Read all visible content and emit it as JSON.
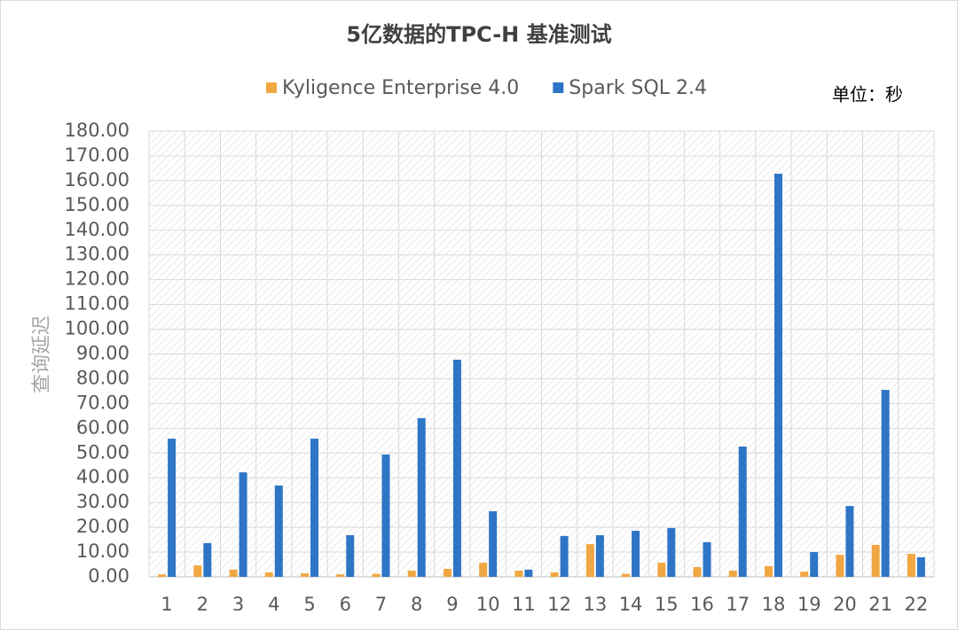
{
  "chart_data": {
    "type": "bar",
    "title": "5亿数据的TPC-H 基准测试",
    "y_label": "查询延迟",
    "annotation": "单位：秒",
    "categories": [
      "1",
      "2",
      "3",
      "4",
      "5",
      "6",
      "7",
      "8",
      "9",
      "10",
      "11",
      "12",
      "13",
      "14",
      "15",
      "16",
      "17",
      "18",
      "19",
      "20",
      "21",
      "22"
    ],
    "series": [
      {
        "name": "Kyligence Enterprise 4.0",
        "color": "#f0a742",
        "values": [
          1.0,
          4.6,
          2.9,
          1.8,
          1.4,
          1.0,
          1.2,
          2.5,
          3.2,
          5.7,
          2.5,
          1.8,
          13.2,
          1.2,
          5.7,
          3.9,
          2.5,
          4.3,
          2.1,
          8.9,
          12.9,
          9.3
        ]
      },
      {
        "name": "Spark SQL 2.4",
        "color": "#2e75c6",
        "values": [
          55.8,
          13.6,
          42.2,
          36.9,
          55.8,
          16.8,
          49.4,
          64.1,
          87.7,
          26.5,
          2.9,
          16.5,
          16.8,
          18.6,
          19.7,
          14.0,
          52.6,
          162.8,
          10.0,
          28.6,
          75.5,
          7.9
        ]
      }
    ],
    "ylim": [
      0,
      180
    ],
    "yticks": [
      {
        "value": 0,
        "label": "0.00"
      },
      {
        "value": 10,
        "label": "10.00"
      },
      {
        "value": 20,
        "label": "20.00"
      },
      {
        "value": 30,
        "label": "30.00"
      },
      {
        "value": 40,
        "label": "40.00"
      },
      {
        "value": 50,
        "label": "50.00"
      },
      {
        "value": 60,
        "label": "60.00"
      },
      {
        "value": 70,
        "label": "70.00"
      },
      {
        "value": 80,
        "label": "80.00"
      },
      {
        "value": 90,
        "label": "90.00"
      },
      {
        "value": 100,
        "label": "100.00"
      },
      {
        "value": 110,
        "label": "110.00"
      },
      {
        "value": 120,
        "label": "120.00"
      },
      {
        "value": 130,
        "label": "130.00"
      },
      {
        "value": 140,
        "label": "140.00"
      },
      {
        "value": 150,
        "label": "150.00"
      },
      {
        "value": 160,
        "label": "160.00"
      },
      {
        "value": 170,
        "label": "170.00"
      },
      {
        "value": 180,
        "label": "180.00"
      }
    ],
    "grid": true
  }
}
